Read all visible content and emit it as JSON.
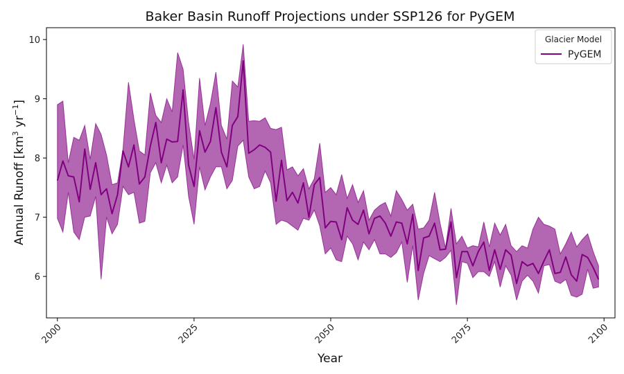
{
  "chart_data": {
    "type": "line",
    "title": "Baker Basin Runoff Projections under SSP126 for PyGEM",
    "xlabel": "Year",
    "ylabel_main": "Annual Runoff [km",
    "ylabel_sup1": "3",
    "ylabel_mid": " yr",
    "ylabel_sup2": "−1",
    "ylabel_end": "]",
    "xlim": [
      1998,
      2102
    ],
    "ylim": [
      5.3,
      10.2
    ],
    "xticks": [
      2000,
      2025,
      2050,
      2075,
      2100
    ],
    "yticks": [
      6,
      7,
      8,
      9,
      10
    ],
    "legend": {
      "title": "Glacier Model",
      "placement": "top-right"
    },
    "colors": {
      "line": "#800080",
      "band": "#a64ca6"
    },
    "series": [
      {
        "name": "PyGEM",
        "x": [
          2000,
          2001,
          2002,
          2003,
          2004,
          2005,
          2006,
          2007,
          2008,
          2009,
          2010,
          2011,
          2012,
          2013,
          2014,
          2015,
          2016,
          2017,
          2018,
          2019,
          2020,
          2021,
          2022,
          2023,
          2024,
          2025,
          2026,
          2027,
          2028,
          2029,
          2030,
          2031,
          2032,
          2033,
          2034,
          2035,
          2036,
          2037,
          2038,
          2039,
          2040,
          2041,
          2042,
          2043,
          2044,
          2045,
          2046,
          2047,
          2048,
          2049,
          2050,
          2051,
          2052,
          2053,
          2054,
          2055,
          2056,
          2057,
          2058,
          2059,
          2060,
          2061,
          2062,
          2063,
          2064,
          2065,
          2066,
          2067,
          2068,
          2069,
          2070,
          2071,
          2072,
          2073,
          2074,
          2075,
          2076,
          2077,
          2078,
          2079,
          2080,
          2081,
          2082,
          2083,
          2084,
          2085,
          2086,
          2087,
          2088,
          2089,
          2090,
          2091,
          2092,
          2093,
          2094,
          2095,
          2096,
          2097,
          2098,
          2099
        ],
        "values": [
          7.62,
          7.95,
          7.7,
          7.68,
          7.26,
          8.15,
          7.47,
          7.92,
          7.38,
          7.48,
          7.06,
          7.38,
          8.12,
          7.85,
          8.22,
          7.56,
          7.68,
          8.2,
          8.6,
          7.92,
          8.32,
          8.27,
          8.28,
          9.15,
          7.88,
          7.52,
          8.46,
          8.1,
          8.28,
          8.85,
          8.1,
          7.85,
          8.55,
          8.7,
          9.64,
          8.08,
          8.14,
          8.22,
          8.18,
          8.1,
          7.27,
          7.96,
          7.28,
          7.42,
          7.24,
          7.58,
          7.0,
          7.55,
          7.67,
          6.82,
          6.93,
          6.92,
          6.62,
          7.16,
          6.95,
          6.88,
          7.12,
          6.72,
          6.98,
          7.02,
          6.9,
          6.68,
          6.92,
          6.9,
          6.55,
          7.05,
          6.1,
          6.65,
          6.68,
          6.9,
          6.45,
          6.46,
          6.92,
          5.98,
          6.42,
          6.42,
          6.18,
          6.42,
          6.58,
          6.1,
          6.45,
          6.12,
          6.45,
          6.36,
          5.88,
          6.25,
          6.18,
          6.22,
          6.05,
          6.26,
          6.45,
          6.05,
          6.07,
          6.33,
          6.03,
          5.92,
          6.37,
          6.32,
          6.15,
          5.95
        ],
        "lower": [
          6.98,
          6.75,
          7.42,
          6.75,
          6.62,
          7.0,
          7.02,
          7.35,
          5.95,
          7.0,
          6.72,
          6.88,
          7.52,
          7.38,
          7.42,
          6.9,
          6.93,
          7.75,
          7.92,
          7.58,
          7.88,
          7.58,
          7.68,
          8.22,
          7.35,
          6.88,
          7.85,
          7.46,
          7.68,
          7.85,
          7.85,
          7.48,
          7.62,
          8.2,
          8.3,
          7.68,
          7.48,
          7.52,
          7.78,
          7.58,
          6.88,
          6.95,
          6.92,
          6.85,
          6.78,
          6.98,
          6.95,
          7.12,
          6.85,
          6.38,
          6.48,
          6.28,
          6.25,
          6.68,
          6.55,
          6.28,
          6.58,
          6.45,
          6.62,
          6.38,
          6.38,
          6.32,
          6.4,
          6.58,
          5.9,
          6.52,
          5.6,
          6.05,
          6.35,
          6.3,
          6.25,
          6.32,
          6.44,
          5.52,
          6.25,
          6.22,
          5.98,
          6.08,
          6.08,
          6.0,
          6.25,
          5.82,
          6.18,
          6.02,
          5.6,
          5.92,
          6.02,
          5.92,
          5.72,
          6.18,
          6.2,
          5.92,
          5.88,
          5.95,
          5.68,
          5.65,
          5.7,
          6.12,
          5.8,
          5.82
        ],
        "upper": [
          8.9,
          8.96,
          7.92,
          8.35,
          8.3,
          8.55,
          7.98,
          8.58,
          8.4,
          8.05,
          7.55,
          7.58,
          8.15,
          9.28,
          8.65,
          8.12,
          8.05,
          9.1,
          8.72,
          8.6,
          9.0,
          8.78,
          9.78,
          9.5,
          8.6,
          7.98,
          9.35,
          8.55,
          8.92,
          9.45,
          8.55,
          8.32,
          9.3,
          9.2,
          9.92,
          8.62,
          8.63,
          8.62,
          8.68,
          8.5,
          8.48,
          8.52,
          7.8,
          7.85,
          7.7,
          7.82,
          7.48,
          7.65,
          8.25,
          7.42,
          7.5,
          7.38,
          7.72,
          7.32,
          7.55,
          7.25,
          7.45,
          6.95,
          7.12,
          7.2,
          7.25,
          7.02,
          7.45,
          7.3,
          7.12,
          7.22,
          6.8,
          6.82,
          6.95,
          7.42,
          6.9,
          6.48,
          7.15,
          6.55,
          6.68,
          6.48,
          6.52,
          6.5,
          6.92,
          6.5,
          6.9,
          6.7,
          6.88,
          6.52,
          6.42,
          6.52,
          6.48,
          6.8,
          7.0,
          6.88,
          6.85,
          6.8,
          6.38,
          6.55,
          6.75,
          6.5,
          6.62,
          6.72,
          6.42,
          6.18
        ]
      }
    ]
  }
}
